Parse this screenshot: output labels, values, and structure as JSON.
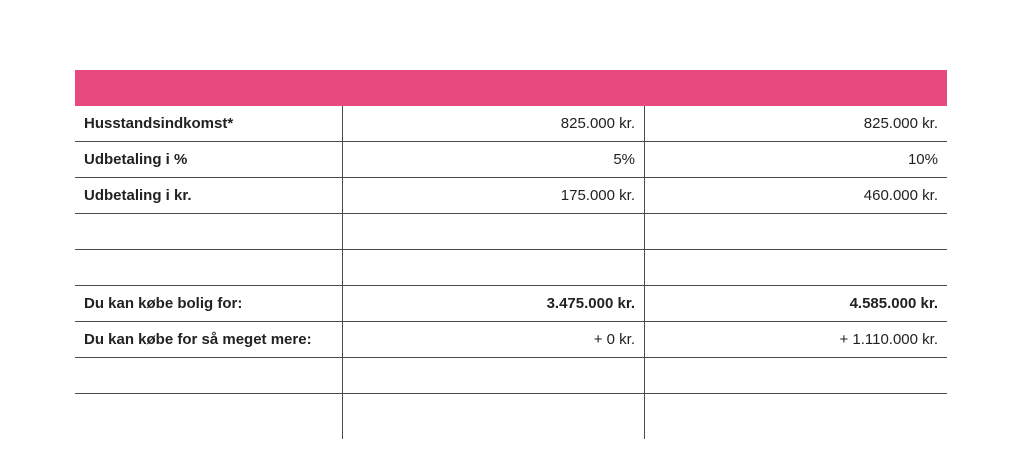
{
  "table": {
    "header_color": "#e84a7f",
    "rows": [
      {
        "label": "Husstandsindkomst*",
        "col1": "825.000 kr.",
        "col2": "825.000 kr.",
        "bold": false
      },
      {
        "label": "Udbetaling i %",
        "col1": "5%",
        "col2": "10%",
        "bold": false
      },
      {
        "label": "Udbetaling i kr.",
        "col1": "175.000 kr.",
        "col2": "460.000 kr.",
        "bold": false
      },
      {
        "label": "",
        "col1": "",
        "col2": "",
        "bold": false
      },
      {
        "label": "",
        "col1": "",
        "col2": "",
        "bold": false
      },
      {
        "label": "Du kan købe bolig for:",
        "col1": "3.475.000 kr.",
        "col2": "4.585.000 kr.",
        "bold": true
      },
      {
        "label": "Du kan købe for så meget mere:",
        "col1": "+ 0 kr.",
        "col2": "+ 1.110.000 kr.",
        "bold": false
      },
      {
        "label": "",
        "col1": "",
        "col2": "",
        "bold": false
      },
      {
        "label": "",
        "col1": "",
        "col2": "",
        "bold": false
      }
    ]
  }
}
